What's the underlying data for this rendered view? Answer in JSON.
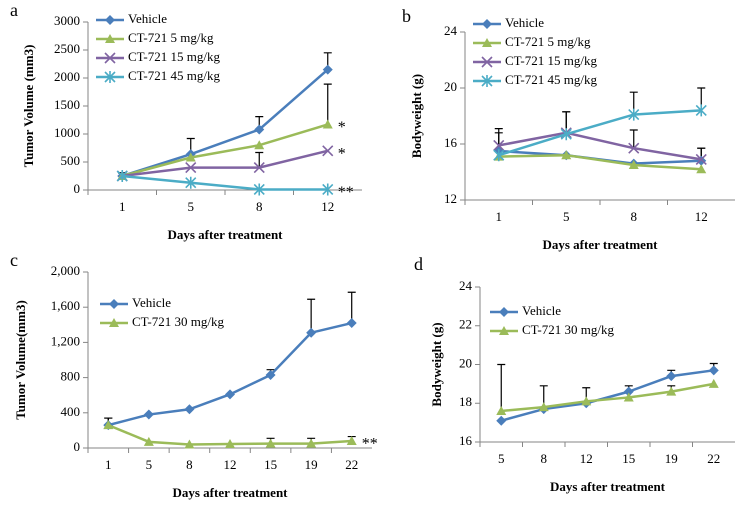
{
  "chart_data": [
    {
      "type": "line",
      "panel": "a",
      "y_label": "Tumor Volume (mm3)",
      "x_label": "Days after treatment",
      "categories": [
        "1",
        "5",
        "8",
        "12"
      ],
      "ylim": [
        0,
        3000
      ],
      "yticks": [
        0,
        500,
        1000,
        1500,
        2000,
        2500,
        3000
      ],
      "series": [
        {
          "name": "Vehicle",
          "color": "#4a7ebb",
          "marker": "diamond",
          "values": [
            250,
            640,
            1080,
            2150
          ],
          "errors": [
            60,
            280,
            230,
            300
          ]
        },
        {
          "name": "CT-721 5 mg/kg",
          "color": "#9bbb59",
          "marker": "triangle",
          "values": [
            250,
            580,
            800,
            1170
          ],
          "errors": [
            null,
            null,
            null,
            720
          ],
          "annotation": "*"
        },
        {
          "name": "CT-721 15 mg/kg",
          "color": "#8064a2",
          "marker": "x",
          "values": [
            250,
            400,
            400,
            700
          ],
          "errors": [
            null,
            null,
            270,
            null
          ],
          "annotation": "*"
        },
        {
          "name": "CT-721 45 mg/kg",
          "color": "#4bacc6",
          "marker": "star",
          "values": [
            250,
            130,
            10,
            10
          ],
          "errors": [
            50,
            null,
            null,
            null
          ],
          "annotation": "**"
        }
      ]
    },
    {
      "type": "line",
      "panel": "b",
      "y_label": "Bodyweight (g)",
      "x_label": "Days after treatment",
      "categories": [
        "1",
        "5",
        "8",
        "12"
      ],
      "ylim": [
        12,
        24
      ],
      "yticks": [
        12,
        16,
        20,
        24
      ],
      "series": [
        {
          "name": "Vehicle",
          "color": "#4a7ebb",
          "marker": "diamond",
          "values": [
            15.5,
            15.2,
            14.6,
            14.8
          ],
          "errors": [
            1.3,
            null,
            null,
            0.9
          ]
        },
        {
          "name": "CT-721 5 mg/kg",
          "color": "#9bbb59",
          "marker": "triangle",
          "values": [
            15.1,
            15.2,
            14.5,
            14.2
          ],
          "errors": [
            null,
            null,
            null,
            null
          ]
        },
        {
          "name": "CT-721 15 mg/kg",
          "color": "#8064a2",
          "marker": "x",
          "values": [
            15.9,
            16.8,
            15.7,
            14.9
          ],
          "errors": [
            1.2,
            1.5,
            1.3,
            0.8
          ]
        },
        {
          "name": "CT-721 45 mg/kg",
          "color": "#4bacc6",
          "marker": "star",
          "values": [
            15.2,
            16.7,
            18.1,
            18.4
          ],
          "errors": [
            null,
            1.6,
            1.6,
            1.6
          ]
        }
      ]
    },
    {
      "type": "line",
      "panel": "c",
      "y_label": "Tumor Volume(mm3)",
      "x_label": "Days after treatment",
      "categories": [
        "1",
        "5",
        "8",
        "12",
        "15",
        "19",
        "22"
      ],
      "ylim": [
        0,
        2000
      ],
      "yticks": [
        0,
        400,
        800,
        {
          "value": 1200,
          "label": "1,200"
        },
        {
          "value": 1600,
          "label": "1,600"
        },
        {
          "value": 2000,
          "label": "2,000"
        }
      ],
      "series": [
        {
          "name": "Vehicle",
          "color": "#4a7ebb",
          "marker": "diamond",
          "values": [
            260,
            380,
            440,
            610,
            830,
            1310,
            1420
          ],
          "errors": [
            80,
            null,
            null,
            null,
            60,
            380,
            350
          ]
        },
        {
          "name": "CT-721 30 mg/kg",
          "color": "#9bbb59",
          "marker": "triangle",
          "values": [
            260,
            70,
            40,
            45,
            50,
            50,
            80
          ],
          "errors": [
            80,
            null,
            null,
            null,
            60,
            60,
            50
          ],
          "annotation": "**"
        }
      ]
    },
    {
      "type": "line",
      "panel": "d",
      "y_label": "Bodyweight (g)",
      "x_label": "Days after treatment",
      "categories": [
        "5",
        "8",
        "12",
        "15",
        "19",
        "22"
      ],
      "ylim": [
        16,
        24
      ],
      "yticks": [
        16,
        18,
        20,
        22,
        24
      ],
      "series": [
        {
          "name": "Vehicle",
          "color": "#4a7ebb",
          "marker": "diamond",
          "values": [
            17.1,
            17.7,
            18.0,
            18.6,
            19.4,
            19.7
          ],
          "errors": [
            null,
            null,
            null,
            null,
            0.3,
            0.35
          ]
        },
        {
          "name": "CT-721 30 mg/kg",
          "color": "#9bbb59",
          "marker": "triangle",
          "values": [
            17.6,
            17.8,
            18.1,
            18.3,
            18.6,
            19.0
          ],
          "errors": [
            2.4,
            1.1,
            0.7,
            0.6,
            0.3,
            null
          ]
        }
      ]
    }
  ]
}
